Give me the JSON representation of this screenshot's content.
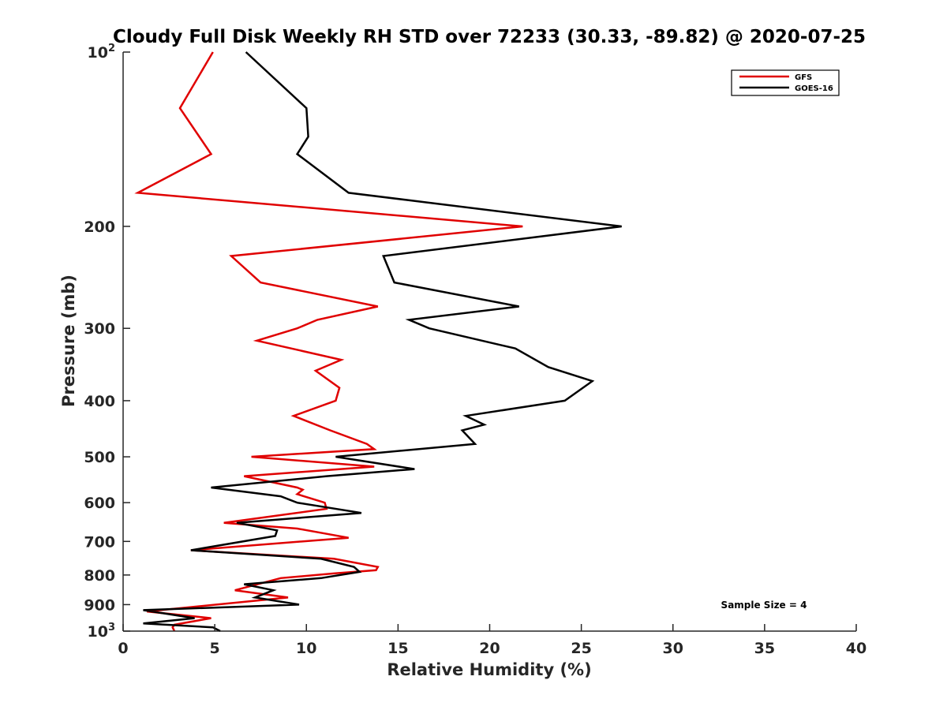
{
  "chart_data": {
    "type": "line",
    "title": "Cloudy Full Disk Weekly RH STD over 72233 (30.33, -89.82) @ 2020-07-25",
    "xlabel": "Relative Humidity (%)",
    "ylabel": "Pressure (mb)",
    "xlim": [
      0,
      40
    ],
    "ylim": [
      100,
      1000
    ],
    "yscale": "log",
    "y_reversed": true,
    "grid": false,
    "legend_position": "top-right",
    "xticks": [
      0,
      5,
      10,
      15,
      20,
      25,
      30,
      35,
      40
    ],
    "xtick_labels": [
      "0",
      "5",
      "10",
      "15",
      "20",
      "25",
      "30",
      "35",
      "40"
    ],
    "yticks": [
      100,
      200,
      300,
      400,
      500,
      600,
      700,
      800,
      900,
      1000
    ],
    "ytick_labels": [
      {
        "base": "10",
        "exp": "2"
      },
      {
        "base": "200",
        "exp": ""
      },
      {
        "base": "300",
        "exp": ""
      },
      {
        "base": "400",
        "exp": ""
      },
      {
        "base": "500",
        "exp": ""
      },
      {
        "base": "600",
        "exp": ""
      },
      {
        "base": "700",
        "exp": ""
      },
      {
        "base": "800",
        "exp": ""
      },
      {
        "base": "900",
        "exp": ""
      },
      {
        "base": "10",
        "exp": "3"
      }
    ],
    "annotation": "Sample Size = 4",
    "series": [
      {
        "name": "GFS",
        "color": "#e00000",
        "points": [
          [
            4.9,
            100
          ],
          [
            3.1,
            125
          ],
          [
            4.8,
            150
          ],
          [
            0.8,
            175
          ],
          [
            21.8,
            200
          ],
          [
            5.9,
            225
          ],
          [
            7.5,
            250
          ],
          [
            13.9,
            275
          ],
          [
            10.6,
            290
          ],
          [
            9.5,
            300
          ],
          [
            7.3,
            315
          ],
          [
            11.9,
            340
          ],
          [
            10.5,
            355
          ],
          [
            11.8,
            380
          ],
          [
            11.6,
            400
          ],
          [
            9.3,
            425
          ],
          [
            11.3,
            450
          ],
          [
            13.3,
            475
          ],
          [
            13.7,
            485
          ],
          [
            7.0,
            500
          ],
          [
            13.7,
            520
          ],
          [
            6.6,
            540
          ],
          [
            9.5,
            565
          ],
          [
            9.8,
            570
          ],
          [
            9.5,
            580
          ],
          [
            11.0,
            600
          ],
          [
            11.1,
            615
          ],
          [
            5.5,
            650
          ],
          [
            9.5,
            665
          ],
          [
            12.3,
            690
          ],
          [
            3.7,
            725
          ],
          [
            11.5,
            750
          ],
          [
            13.9,
            775
          ],
          [
            13.8,
            785
          ],
          [
            11.5,
            795
          ],
          [
            8.6,
            810
          ],
          [
            6.1,
            850
          ],
          [
            9.0,
            875
          ],
          [
            1.3,
            925
          ],
          [
            4.8,
            950
          ],
          [
            2.8,
            975
          ],
          [
            2.7,
            985
          ],
          [
            2.8,
            1000
          ]
        ]
      },
      {
        "name": "GOES-16",
        "color": "#000000",
        "points": [
          [
            6.7,
            100
          ],
          [
            10.0,
            125
          ],
          [
            10.1,
            140
          ],
          [
            9.5,
            150
          ],
          [
            12.3,
            175
          ],
          [
            27.2,
            200
          ],
          [
            14.2,
            225
          ],
          [
            14.8,
            250
          ],
          [
            21.6,
            275
          ],
          [
            15.6,
            290
          ],
          [
            16.7,
            300
          ],
          [
            21.4,
            325
          ],
          [
            23.2,
            350
          ],
          [
            25.6,
            370
          ],
          [
            24.1,
            400
          ],
          [
            18.7,
            425
          ],
          [
            19.7,
            440
          ],
          [
            18.5,
            450
          ],
          [
            19.2,
            475
          ],
          [
            11.6,
            500
          ],
          [
            15.9,
            525
          ],
          [
            11.1,
            540
          ],
          [
            4.8,
            565
          ],
          [
            8.6,
            585
          ],
          [
            9.5,
            600
          ],
          [
            13.0,
            625
          ],
          [
            6.2,
            650
          ],
          [
            8.4,
            670
          ],
          [
            8.3,
            685
          ],
          [
            3.7,
            725
          ],
          [
            10.8,
            750
          ],
          [
            12.6,
            775
          ],
          [
            12.9,
            790
          ],
          [
            10.8,
            810
          ],
          [
            6.6,
            830
          ],
          [
            8.2,
            850
          ],
          [
            7.2,
            875
          ],
          [
            9.6,
            900
          ],
          [
            1.1,
            920
          ],
          [
            3.9,
            950
          ],
          [
            1.1,
            970
          ],
          [
            4.9,
            985
          ],
          [
            5.3,
            1000
          ]
        ]
      }
    ]
  }
}
